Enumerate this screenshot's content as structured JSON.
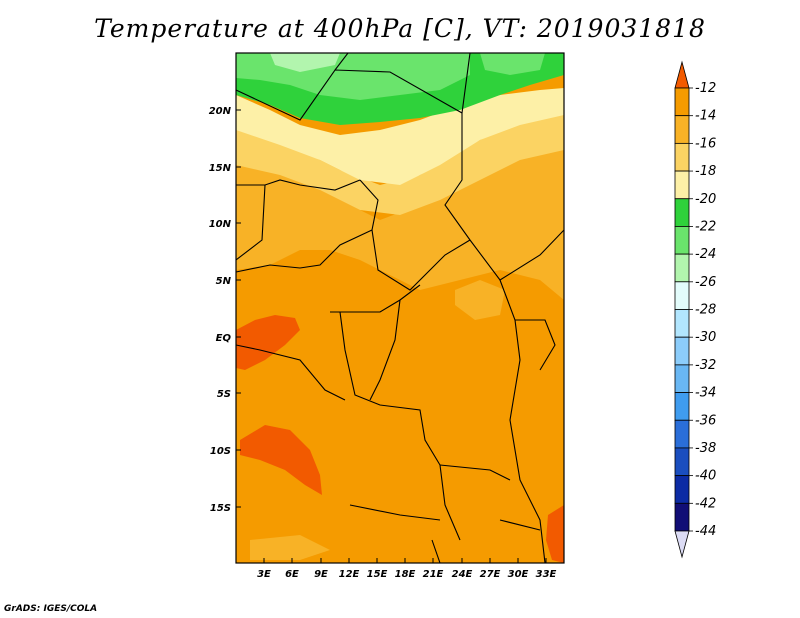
{
  "title": "Temperature at 400hPa [C], VT: 2019031818",
  "credit": "GrADS: IGES/COLA",
  "map": {
    "lat_labels": [
      "20N",
      "15N",
      "10N",
      "5N",
      "EQ",
      "5S",
      "10S",
      "15S"
    ],
    "lon_labels": [
      "3E",
      "6E",
      "9E",
      "12E",
      "15E",
      "18E",
      "21E",
      "24E",
      "27E",
      "30E",
      "33E"
    ]
  },
  "colorbar": {
    "levels": [
      "-12",
      "-14",
      "-16",
      "-18",
      "-20",
      "-22",
      "-24",
      "-26",
      "-28",
      "-30",
      "-32",
      "-34",
      "-36",
      "-38",
      "-40",
      "-42",
      "-44"
    ],
    "colors": [
      "#f25a00",
      "#f59b00",
      "#f8b226",
      "#fbd363",
      "#fdf0a7",
      "#2fd23b",
      "#6ae46c",
      "#b2f5ae",
      "#e3fcfb",
      "#b2e6fe",
      "#8ccdfb",
      "#69b7f3",
      "#3f9cef",
      "#2a6ed9",
      "#1a4ebf",
      "#0c2ba4",
      "#110e76",
      "#dcdcf5"
    ]
  }
}
